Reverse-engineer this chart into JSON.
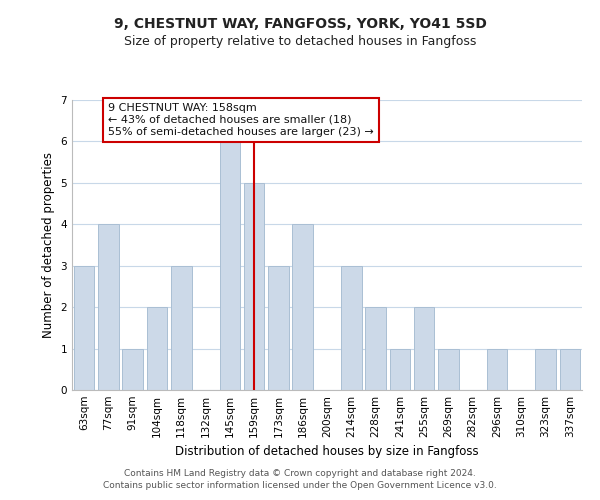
{
  "title": "9, CHESTNUT WAY, FANGFOSS, YORK, YO41 5SD",
  "subtitle": "Size of property relative to detached houses in Fangfoss",
  "xlabel": "Distribution of detached houses by size in Fangfoss",
  "ylabel": "Number of detached properties",
  "bar_labels": [
    "63sqm",
    "77sqm",
    "91sqm",
    "104sqm",
    "118sqm",
    "132sqm",
    "145sqm",
    "159sqm",
    "173sqm",
    "186sqm",
    "200sqm",
    "214sqm",
    "228sqm",
    "241sqm",
    "255sqm",
    "269sqm",
    "282sqm",
    "296sqm",
    "310sqm",
    "323sqm",
    "337sqm"
  ],
  "bar_values": [
    3,
    4,
    1,
    2,
    3,
    0,
    6,
    5,
    3,
    4,
    0,
    3,
    2,
    1,
    2,
    1,
    0,
    1,
    0,
    1,
    1
  ],
  "bar_color": "#ccd9e8",
  "bar_edge_color": "#aabfd4",
  "highlight_index": 7,
  "highlight_line_color": "#cc0000",
  "ylim": [
    0,
    7
  ],
  "yticks": [
    0,
    1,
    2,
    3,
    4,
    5,
    6,
    7
  ],
  "annotation_line1": "9 CHESTNUT WAY: 158sqm",
  "annotation_line2": "← 43% of detached houses are smaller (18)",
  "annotation_line3": "55% of semi-detached houses are larger (23) →",
  "annotation_box_color": "#ffffff",
  "annotation_box_edge": "#cc0000",
  "footer_line1": "Contains HM Land Registry data © Crown copyright and database right 2024.",
  "footer_line2": "Contains public sector information licensed under the Open Government Licence v3.0.",
  "background_color": "#ffffff",
  "grid_color": "#c8d8e8",
  "title_fontsize": 10,
  "subtitle_fontsize": 9,
  "axis_label_fontsize": 8.5,
  "tick_fontsize": 7.5,
  "footer_fontsize": 6.5,
  "annotation_fontsize": 8
}
